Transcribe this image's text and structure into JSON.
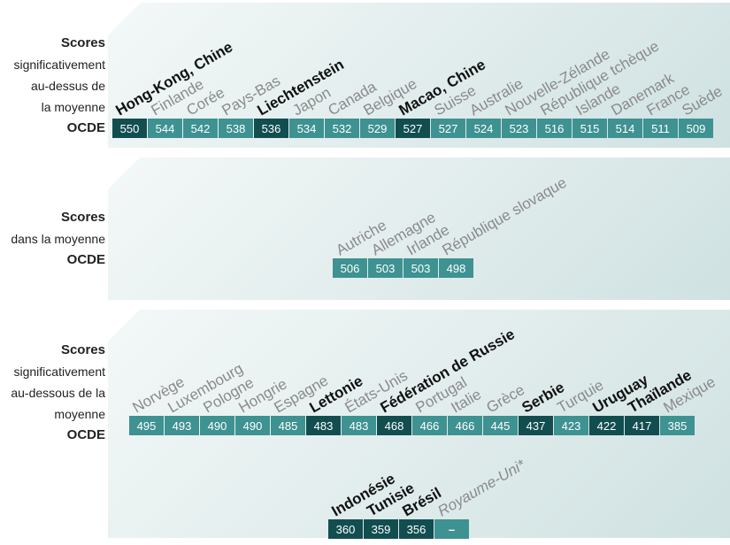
{
  "colors": {
    "highlight_cell": "#124e50",
    "cell": "#3e9291",
    "highlight_text": "#111111",
    "name_text": "#8a8a8a",
    "value_text": "#ffffff"
  },
  "groups": {
    "above": {
      "label_bold_first": "Scores",
      "label_lines": [
        "significativement",
        "au-dessus de",
        "la moyenne"
      ],
      "label_bold_last": "OCDE"
    },
    "average": {
      "label_bold_first": "Scores",
      "label_lines": [
        "dans la moyenne"
      ],
      "label_bold_last": "OCDE"
    },
    "below": {
      "label_bold_first": "Scores",
      "label_lines": [
        "significativement",
        "au-dessous de la",
        "moyenne"
      ],
      "label_bold_last": "OCDE"
    }
  },
  "chart_data": {
    "type": "table",
    "rows": [
      {
        "group": "above",
        "countries": [
          {
            "name": "Hong-Kong, Chine",
            "value": "550",
            "highlight": true
          },
          {
            "name": "Finlande",
            "value": "544",
            "highlight": false
          },
          {
            "name": "Corée",
            "value": "542",
            "highlight": false
          },
          {
            "name": "Pays-Bas",
            "value": "538",
            "highlight": false
          },
          {
            "name": "Liechtenstein",
            "value": "536",
            "highlight": true
          },
          {
            "name": "Japon",
            "value": "534",
            "highlight": false
          },
          {
            "name": "Canada",
            "value": "532",
            "highlight": false
          },
          {
            "name": "Belgique",
            "value": "529",
            "highlight": false
          },
          {
            "name": "Macao, Chine",
            "value": "527",
            "highlight": true
          },
          {
            "name": "Suisse",
            "value": "527",
            "highlight": false
          },
          {
            "name": "Australie",
            "value": "524",
            "highlight": false
          },
          {
            "name": "Nouvelle-Zélande",
            "value": "523",
            "highlight": false
          },
          {
            "name": "République tchèque",
            "value": "516",
            "highlight": false
          },
          {
            "name": "Islande",
            "value": "515",
            "highlight": false
          },
          {
            "name": "Danemark",
            "value": "514",
            "highlight": false
          },
          {
            "name": "France",
            "value": "511",
            "highlight": false
          },
          {
            "name": "Suède",
            "value": "509",
            "highlight": false
          }
        ]
      },
      {
        "group": "average",
        "countries": [
          {
            "name": "Autriche",
            "value": "506",
            "highlight": false
          },
          {
            "name": "Allemagne",
            "value": "503",
            "highlight": false
          },
          {
            "name": "Irlande",
            "value": "503",
            "highlight": false
          },
          {
            "name": "République slovaque",
            "value": "498",
            "highlight": false
          }
        ]
      },
      {
        "group": "below",
        "countries": [
          {
            "name": "Norvège",
            "value": "495",
            "highlight": false
          },
          {
            "name": "Luxembourg",
            "value": "493",
            "highlight": false
          },
          {
            "name": "Pologne",
            "value": "490",
            "highlight": false
          },
          {
            "name": "Hongrie",
            "value": "490",
            "highlight": false
          },
          {
            "name": "Espagne",
            "value": "485",
            "highlight": false
          },
          {
            "name": "Lettonie",
            "value": "483",
            "highlight": true
          },
          {
            "name": "États-Unis",
            "value": "483",
            "highlight": false
          },
          {
            "name": "Fédération de Russie",
            "value": "468",
            "highlight": true
          },
          {
            "name": "Portugal",
            "value": "466",
            "highlight": false
          },
          {
            "name": "Italie",
            "value": "466",
            "highlight": false
          },
          {
            "name": "Grèce",
            "value": "445",
            "highlight": false
          },
          {
            "name": "Serbie",
            "value": "437",
            "highlight": true
          },
          {
            "name": "Turquie",
            "value": "423",
            "highlight": false
          },
          {
            "name": "Uruguay",
            "value": "422",
            "highlight": true
          },
          {
            "name": "Thaïlande",
            "value": "417",
            "highlight": true
          },
          {
            "name": "Mexique",
            "value": "385",
            "highlight": false
          }
        ]
      },
      {
        "group": "below",
        "countries": [
          {
            "name": "Indonésie",
            "value": "360",
            "highlight": true
          },
          {
            "name": "Tunisie",
            "value": "359",
            "highlight": true
          },
          {
            "name": "Brésil",
            "value": "356",
            "highlight": true
          },
          {
            "name": "Royaume-Uni*",
            "value": "–",
            "highlight": false
          }
        ]
      }
    ]
  }
}
